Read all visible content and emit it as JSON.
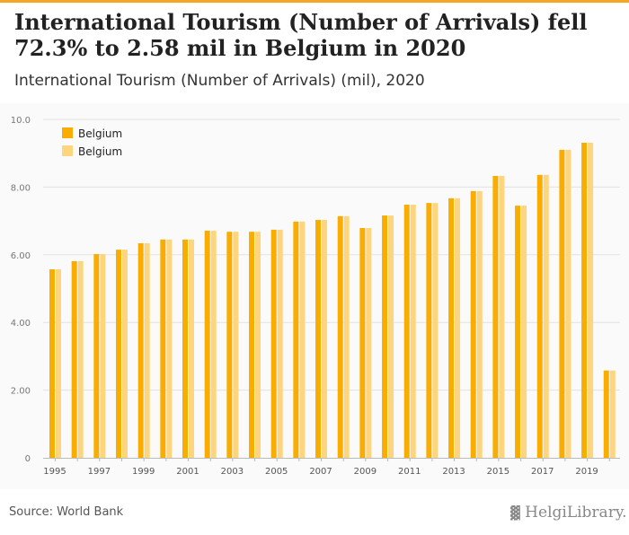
{
  "title": "International Tourism (Number of Arrivals) fell 72.3% to 2.58 mil in Belgium in 2020",
  "subtitle": "International Tourism (Number of Arrivals) (mil), 2020",
  "source": "Source: World Bank",
  "logo": "HelgiLibrary.",
  "colors": {
    "series1": "#f9ad00",
    "series2": "#fdd57e"
  },
  "chart_data": {
    "type": "bar",
    "title": "International Tourism (Number of Arrivals) (mil), 2020",
    "xlabel": "",
    "ylabel": "",
    "ylim": [
      0,
      10
    ],
    "yticks": [
      "0",
      "2.00",
      "4.00",
      "6.00",
      "8.00",
      "10.0"
    ],
    "ytick_values": [
      0,
      2,
      4,
      6,
      8,
      10
    ],
    "grid": true,
    "legend_position": "top-left",
    "categories": [
      "1995",
      "1996",
      "1997",
      "1998",
      "1999",
      "2000",
      "2001",
      "2002",
      "2003",
      "2004",
      "2005",
      "2006",
      "2007",
      "2008",
      "2009",
      "2010",
      "2011",
      "2012",
      "2013",
      "2014",
      "2015",
      "2016",
      "2017",
      "2018",
      "2019",
      "2020"
    ],
    "xtick_labels": [
      "1995",
      "1997",
      "1999",
      "2001",
      "2003",
      "2005",
      "2007",
      "2009",
      "2011",
      "2013",
      "2015",
      "2017",
      "2019"
    ],
    "series": [
      {
        "name": "Belgium",
        "values": [
          5.57,
          5.81,
          6.02,
          6.15,
          6.34,
          6.45,
          6.45,
          6.71,
          6.68,
          6.68,
          6.74,
          6.98,
          7.03,
          7.14,
          6.79,
          7.16,
          7.48,
          7.53,
          7.67,
          7.88,
          8.33,
          7.45,
          8.36,
          9.1,
          9.31,
          2.58
        ]
      },
      {
        "name": "Belgium",
        "values": [
          5.57,
          5.81,
          6.02,
          6.15,
          6.34,
          6.45,
          6.45,
          6.71,
          6.68,
          6.68,
          6.74,
          6.98,
          7.03,
          7.14,
          6.79,
          7.16,
          7.48,
          7.53,
          7.67,
          7.88,
          8.33,
          7.45,
          8.36,
          9.1,
          9.31,
          2.58
        ]
      }
    ]
  }
}
